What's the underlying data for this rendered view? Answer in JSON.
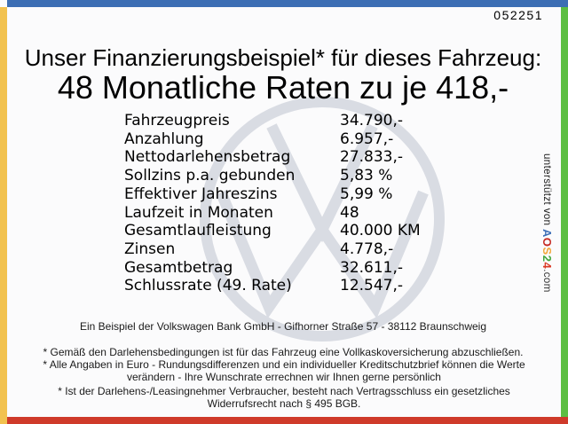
{
  "sheet": {
    "serial": "052251",
    "title": "Unser Finanzierungsbeispiel* für dieses Fahrzeug:",
    "subtitle": "48 Monatliche Raten zu je 418,-"
  },
  "finance_table": {
    "rows": [
      {
        "label": "Fahrzeugpreis",
        "value": "34.790,-"
      },
      {
        "label": "Anzahlung",
        "value": "6.957,-"
      },
      {
        "label": "Nettodarlehensbetrag",
        "value": "27.833,-"
      },
      {
        "label": "Sollzins p.a. gebunden",
        "value": "5,83 %"
      },
      {
        "label": "Effektiver Jahreszins",
        "value": "5,99 %"
      },
      {
        "label": "Laufzeit in Monaten",
        "value": "48"
      },
      {
        "label": "Gesamtlaufleistung",
        "value": "40.000 KM"
      },
      {
        "label": "Zinsen",
        "value": "4.778,-"
      },
      {
        "label": "Gesamtbetrag",
        "value": "32.611,-"
      },
      {
        "label": "Schlussrate (49. Rate)",
        "value": "12.547,-"
      }
    ]
  },
  "watermark": {
    "icon": "vw-logo-icon",
    "color": "#d9dce3"
  },
  "credit": {
    "prefix": "unterstützt von ",
    "brand_letters": [
      {
        "char": "A",
        "color": "#3e6fb7"
      },
      {
        "char": "O",
        "color": "#c5271f"
      },
      {
        "char": "S",
        "color": "#f2a73b"
      },
      {
        "char": "2",
        "color": "#3fa53c"
      },
      {
        "char": "4",
        "color": "#da3b27"
      }
    ],
    "suffix": ".com"
  },
  "footer": {
    "address": "Ein Beispiel der Volkswagen Bank GmbH - Gifhorner Straße 57 - 38112 Braunschweig",
    "disclaimer_1": "* Gemäß den Darlehensbedingungen ist für das Fahrzeug eine Vollkaskoversicherung abzuschließen.",
    "disclaimer_2": "* Alle Angaben in Euro - Rundungsdifferenzen und ein individueller Kreditschutzbrief können die Werte verändern - Ihre Wunschrate errechnen wir Ihnen gerne persönlich",
    "disclaimer_3": "* Ist der Darlehens-/Leasingnehmer Verbraucher, besteht nach Vertragsschluss ein gesetzliches Widerrufsrecht nach § 495 BGB."
  },
  "frame_colors": {
    "top": "#3c6eb4",
    "left": "#f2c24f",
    "right": "#5cbe42",
    "bottom": "#cf3a2a"
  }
}
